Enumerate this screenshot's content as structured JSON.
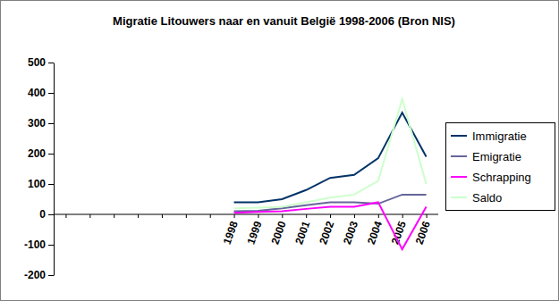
{
  "chart_data": {
    "type": "line",
    "title": "Migratie Litouwers naar en vanuit België 1998-2006 (Bron NIS)",
    "categories": [
      null,
      null,
      null,
      null,
      null,
      null,
      null,
      "1998",
      "1999",
      "2000",
      "2001",
      "2002",
      "2003",
      "2004",
      "2005",
      "2006"
    ],
    "series": [
      {
        "name": "Immigratie",
        "color": "#003366",
        "values": [
          null,
          null,
          null,
          null,
          null,
          null,
          null,
          40,
          40,
          50,
          80,
          120,
          130,
          185,
          335,
          190
        ]
      },
      {
        "name": "Emigratie",
        "color": "#666699",
        "values": [
          null,
          null,
          null,
          null,
          null,
          null,
          null,
          10,
          12,
          20,
          30,
          40,
          40,
          35,
          65,
          65
        ]
      },
      {
        "name": "Schrapping",
        "color": "#ff00ff",
        "values": [
          null,
          null,
          null,
          null,
          null,
          null,
          null,
          5,
          8,
          10,
          18,
          25,
          25,
          40,
          -115,
          25
        ]
      },
      {
        "name": "Saldo",
        "color": "#ccffcc",
        "values": [
          null,
          null,
          null,
          null,
          null,
          null,
          null,
          20,
          22,
          25,
          40,
          55,
          65,
          110,
          380,
          100
        ]
      }
    ],
    "ylim": [
      -200,
      500
    ],
    "yticks": [
      -200,
      -100,
      0,
      100,
      200,
      300,
      400,
      500
    ],
    "grid": false,
    "legend": "right"
  }
}
